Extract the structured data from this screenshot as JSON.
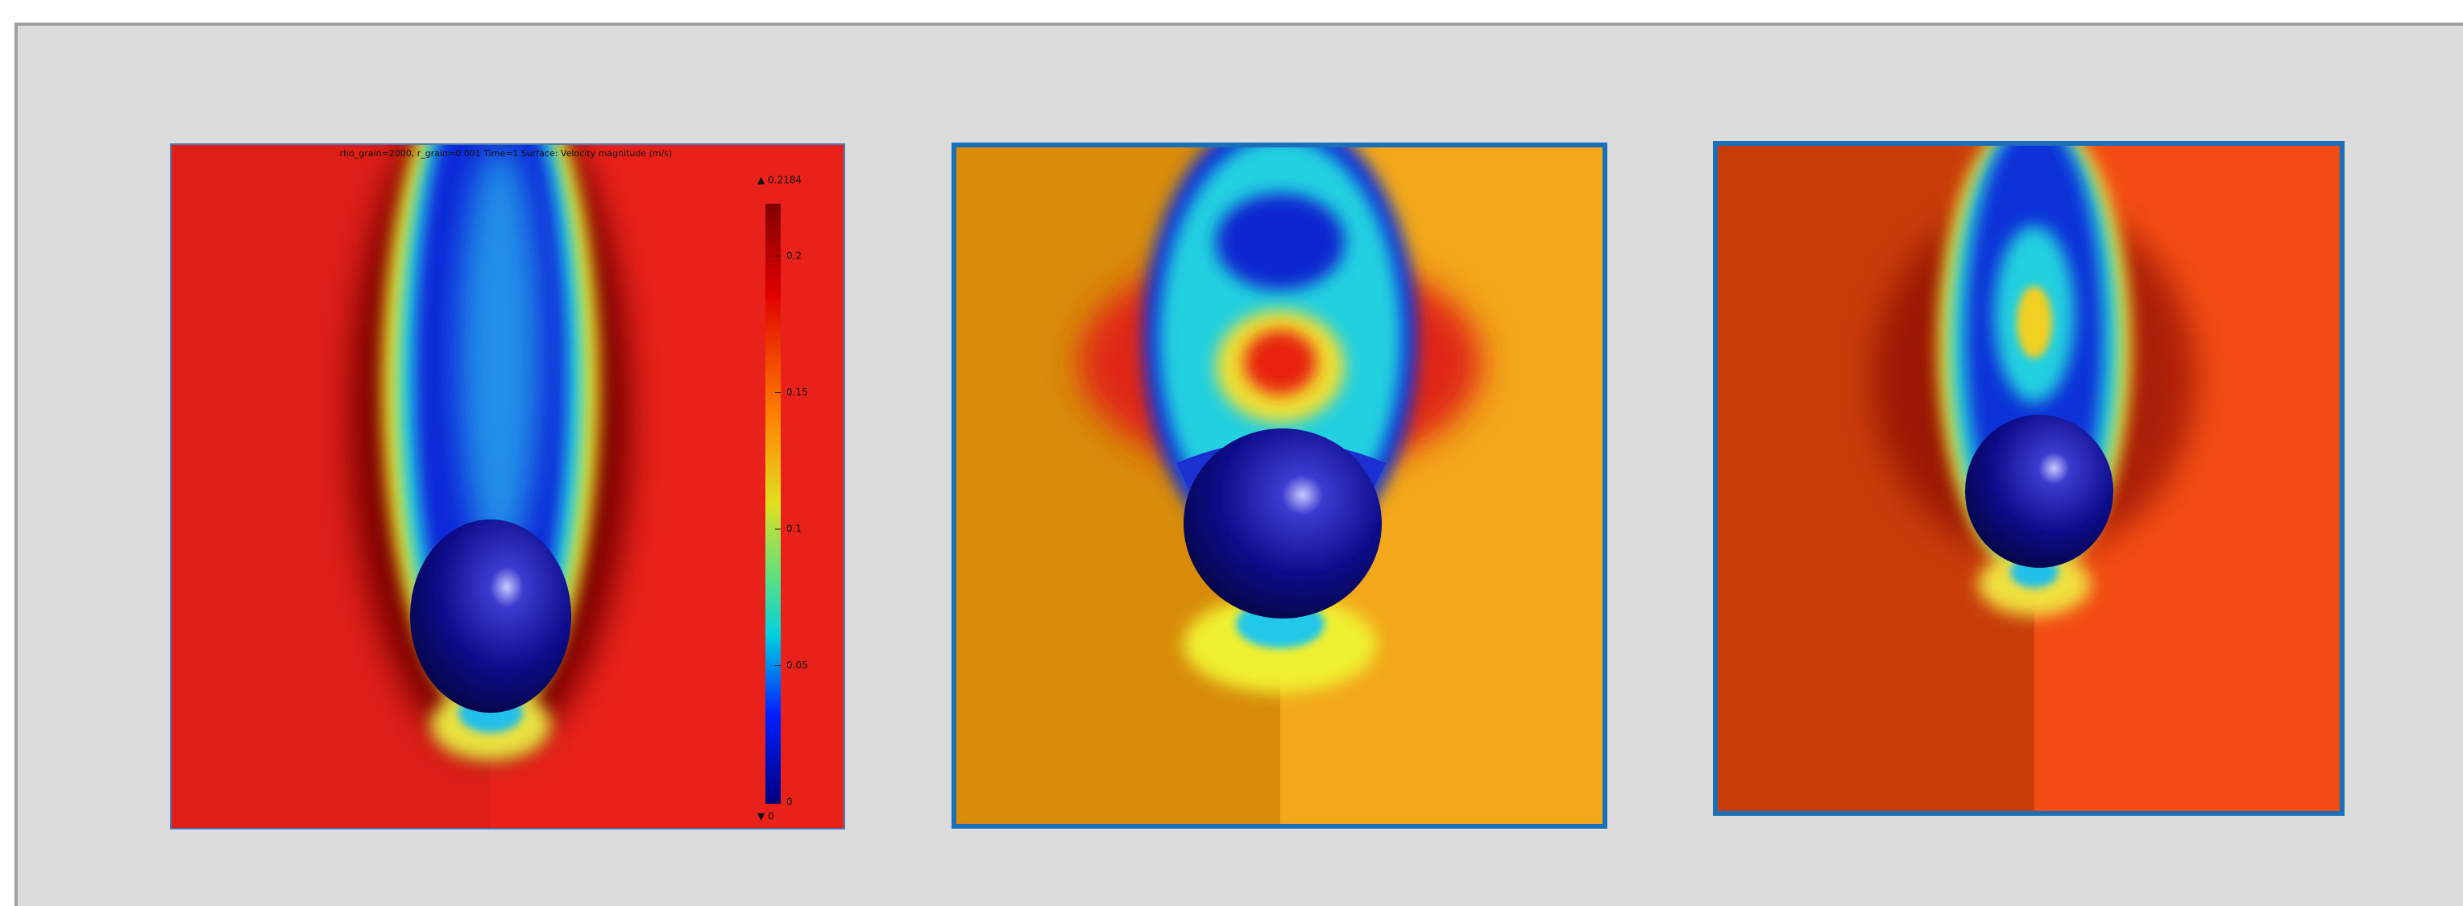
{
  "figure": {
    "title": "rho_grain=2000, r_grain=0.001 Time=1   Surface: Velocity magnitude (m/s)",
    "colorbar": {
      "max_label": "▲ 0.2184",
      "ticks": [
        0.2,
        0.15,
        0.1,
        0.05,
        0
      ],
      "min_label": "▼ 0"
    }
  }
}
